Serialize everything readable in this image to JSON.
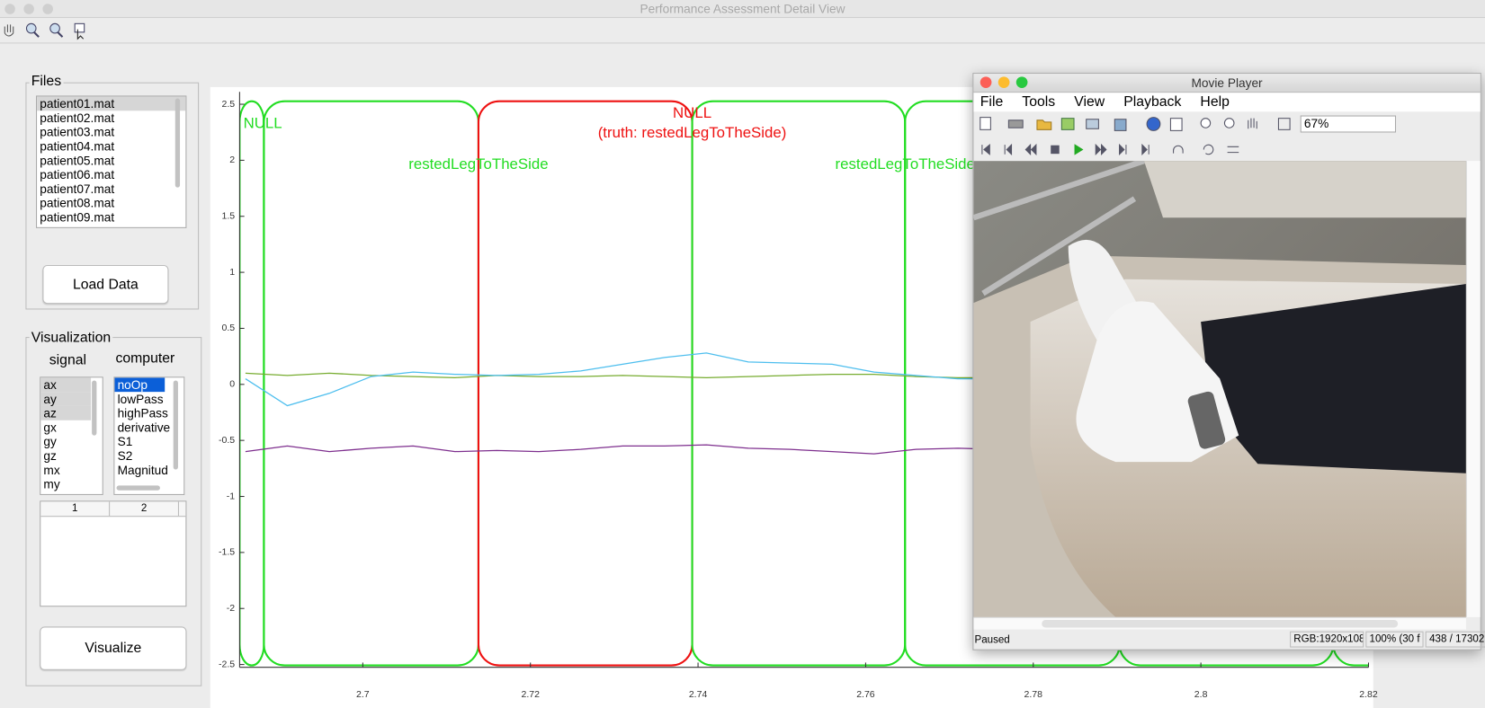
{
  "window_title": "Performance Assessment Detail View",
  "files": {
    "title": "Files",
    "items": [
      "patient01.mat",
      "patient02.mat",
      "patient03.mat",
      "patient04.mat",
      "patient05.mat",
      "patient06.mat",
      "patient07.mat",
      "patient08.mat",
      "patient09.mat"
    ],
    "button": "Load Data"
  },
  "visualization": {
    "title": "Visualization",
    "signal_label": "signal",
    "computer_label": "computer",
    "signals": [
      "ax",
      "ay",
      "az",
      "gx",
      "gy",
      "gz",
      "mx",
      "my"
    ],
    "computers": [
      "noOp",
      "lowPass",
      "highPass",
      "derivative",
      "S1",
      "S2",
      "Magnitud"
    ],
    "table_headers": [
      "1",
      "2"
    ],
    "button": "Visualize"
  },
  "chart_data": {
    "type": "line",
    "x": [
      2.686,
      2.691,
      2.696,
      2.701,
      2.706,
      2.711,
      2.716,
      2.721,
      2.726,
      2.731,
      2.736,
      2.741,
      2.746,
      2.751,
      2.756,
      2.761,
      2.766,
      2.771,
      2.776,
      2.781,
      2.786,
      2.791,
      2.796,
      2.801,
      2.806,
      2.811,
      2.816,
      2.82
    ],
    "series": [
      {
        "color": "#77ac30",
        "values": [
          0.1,
          0.08,
          0.1,
          0.08,
          0.07,
          0.06,
          0.08,
          0.07,
          0.07,
          0.08,
          0.07,
          0.06,
          0.07,
          0.08,
          0.09,
          0.09,
          0.07,
          0.06,
          0.06,
          0.06,
          0.06,
          0.06,
          0.06,
          0.06,
          0.06,
          0.06,
          0.06,
          0.06
        ]
      },
      {
        "color": "#4dbeee",
        "values": [
          0.05,
          -0.19,
          -0.08,
          0.07,
          0.11,
          0.09,
          0.08,
          0.09,
          0.12,
          0.18,
          0.24,
          0.28,
          0.2,
          0.19,
          0.18,
          0.11,
          0.08,
          0.05,
          0.05,
          0.05,
          0.05,
          0.05,
          0.05,
          0.05,
          0.05,
          0.05,
          0.05,
          0.05
        ]
      },
      {
        "color": "#7e2f8e",
        "values": [
          -0.6,
          -0.55,
          -0.6,
          -0.57,
          -0.55,
          -0.6,
          -0.59,
          -0.6,
          -0.58,
          -0.55,
          -0.55,
          -0.54,
          -0.57,
          -0.58,
          -0.6,
          -0.62,
          -0.58,
          -0.57,
          -0.58,
          -0.58,
          -0.58,
          -0.58,
          -0.58,
          -0.58,
          -0.58,
          -0.58,
          -0.58,
          -0.58
        ]
      }
    ],
    "xlim": [
      2.6853,
      2.82
    ],
    "ylim": [
      -2.525,
      2.611
    ],
    "xticks": [
      2.7,
      2.72,
      2.74,
      2.76,
      2.78,
      2.8,
      2.82
    ],
    "yticks": [
      -2.5,
      -2,
      -1.5,
      -1,
      -0.5,
      0,
      0.5,
      1,
      1.5,
      2,
      2.5
    ],
    "grid": false,
    "segments": [
      {
        "label": "NULL",
        "color": "#22dd22",
        "start": 2.6853,
        "end": 2.6882
      },
      {
        "label": "restedLegToTheSide",
        "color": "#22dd22",
        "start": 2.6882,
        "end": 2.7138
      },
      {
        "label": "NULL",
        "truth": "(truth: restedLegToTheSide)",
        "color": "#ee1111",
        "start": 2.7138,
        "end": 2.7393
      },
      {
        "label": "restedLegToTheSide",
        "color": "#22dd22",
        "start": 2.7393,
        "end": 2.7647
      },
      {
        "color": "#22dd22",
        "start": 2.7647,
        "end": 2.7903
      },
      {
        "color": "#22dd22",
        "start": 2.7903,
        "end": 2.8158
      },
      {
        "color": "#22dd22",
        "start": 2.8158,
        "end": 2.83
      }
    ]
  },
  "movie_player": {
    "title": "Movie Player",
    "menu": [
      "File",
      "Tools",
      "View",
      "Playback",
      "Help"
    ],
    "zoom": "67%",
    "status": "Paused",
    "info": [
      "RGB:1920x108",
      "100% (30 f",
      "438 / 17302"
    ]
  }
}
